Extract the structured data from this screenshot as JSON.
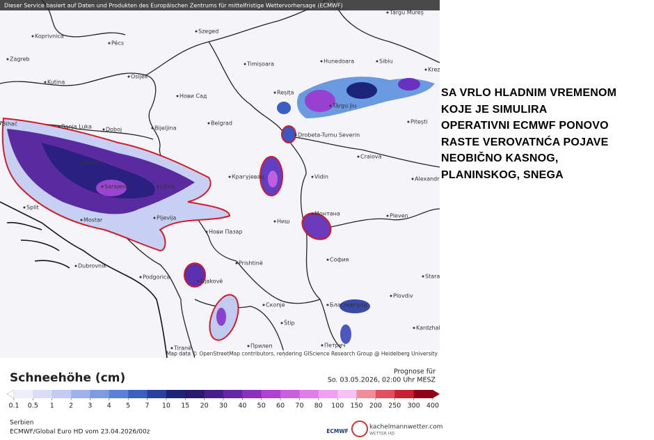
{
  "header": {
    "attribution": "Dieser Service basiert auf Daten und Produkten des Europäischen Zentrums für mittelfristige Wettervorhersage (ECMWF)"
  },
  "map": {
    "cities": [
      "Târgu Mureș",
      "Koprivnica",
      "Pécs",
      "Szeged",
      "Zagreb",
      "Osijek",
      "Kutina",
      "Timișoara",
      "Hunedoara",
      "Sibiu",
      "Reșița",
      "Нови Сад",
      "Belgrad",
      "Bihać",
      "Banja Luka",
      "Doboj",
      "Bijeljina",
      "Drobeta-Turnu Severin",
      "Târgu Jiu",
      "Pitești",
      "Travnik",
      "Sarajevo",
      "Užice",
      "Крагујевац",
      "Craiova",
      "Vidin",
      "Alexandria",
      "Split",
      "Mostar",
      "Pljevlja",
      "Ниш",
      "Монтана",
      "Pleven",
      "Нови Пазар",
      "Dubrovnik",
      "София",
      "Prishtinë",
      "Podgorica",
      "Gjakovë",
      "Скопје",
      "Благоевград",
      "Stara",
      "Plovdiv",
      "Štip",
      "Kardzhali",
      "Tiranë",
      "Петрич",
      "Прилеп",
      "Krez"
    ],
    "map_credit": "Map data © OpenStreetMap contributors, rendering GIScience Research Group @ Heidelberg University"
  },
  "overlay_text": [
    "SA VRLO HLADNIM VREMENOM",
    "KOJE JE SIMULIRA",
    "OPERATIVNI ECMWF PONOVO",
    "RASTE VEROVATNĆA POJAVE",
    "NEOBIČNO KASNOG,",
    "PLANINSKOG, SNEGA"
  ],
  "legend": {
    "title": "Schneehöhe (cm)",
    "ticks": [
      0.1,
      0.5,
      1,
      2,
      3,
      4,
      5,
      7,
      10,
      15,
      20,
      30,
      40,
      50,
      60,
      70,
      80,
      100,
      150,
      200,
      250,
      300,
      400
    ],
    "colors": [
      "#eeeef8",
      "#d8dcf4",
      "#c2cbf0",
      "#9fb2ea",
      "#7c99e2",
      "#5a7fd6",
      "#3c5fc2",
      "#2a3f9e",
      "#1c2478",
      "#2a1a6e",
      "#46208a",
      "#6426a4",
      "#8a30c0",
      "#b040d4",
      "#cc5ee0",
      "#e07ee8",
      "#eea0f0",
      "#f4c2f4",
      "#f08c9a",
      "#e0505e",
      "#c82030",
      "#900018"
    ]
  },
  "forecast": {
    "label": "Prognose für",
    "time": "So. 03.05.2026, 02:00 Uhr MESZ"
  },
  "footer": {
    "region": "Serbien",
    "model": "ECMWF/Global Euro HD vom  23.04.2026/00z",
    "ecmwf": "ECMWF",
    "site": "kachelmannwetter.com",
    "site_sub": "WETTER HD"
  }
}
